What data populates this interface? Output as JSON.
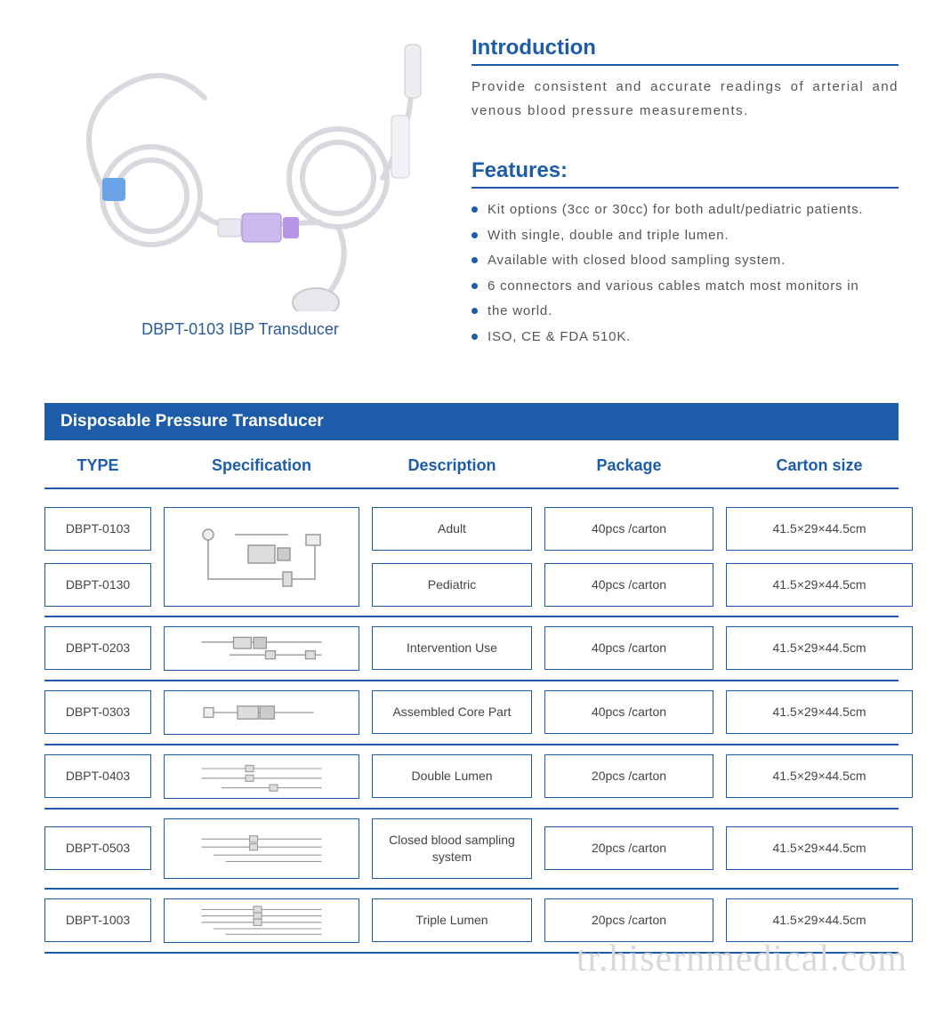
{
  "colors": {
    "brand": "#1d5ca8",
    "text": "#555558",
    "caption": "#2a5a9a",
    "watermark": "#d9d9d9",
    "white": "#ffffff"
  },
  "product": {
    "caption": "DBPT-0103 IBP Transducer"
  },
  "introduction": {
    "heading": "Introduction",
    "text": "Provide consistent and accurate readings of arterial and venous blood pressure measurements."
  },
  "features": {
    "heading": "Features:",
    "items": [
      "Kit options (3cc or 30cc) for both adult/pediatric patients.",
      "With single, double and triple lumen.",
      "Available with closed blood sampling system.",
      "6 connectors and various cables match most monitors in",
      "the world.",
      "ISO, CE & FDA 510K."
    ]
  },
  "table": {
    "title": "Disposable Pressure Transducer",
    "columns": [
      "TYPE",
      "Specification",
      "Description",
      "Package",
      "Carton  size"
    ],
    "merged_group": {
      "types": [
        "DBPT-0103",
        "DBPT-0130"
      ],
      "rows": [
        {
          "description": "Adult",
          "package": "40pcs /carton",
          "carton": "41.5×29×44.5cm"
        },
        {
          "description": "Pediatric",
          "package": "40pcs /carton",
          "carton": "41.5×29×44.5cm"
        }
      ]
    },
    "rows": [
      {
        "type": "DBPT-0203",
        "description": "Intervention Use",
        "package": "40pcs /carton",
        "carton": "41.5×29×44.5cm"
      },
      {
        "type": "DBPT-0303",
        "description": "Assembled Core Part",
        "package": "40pcs /carton",
        "carton": "41.5×29×44.5cm"
      },
      {
        "type": "DBPT-0403",
        "description": "Double Lumen",
        "package": "20pcs /carton",
        "carton": "41.5×29×44.5cm"
      },
      {
        "type": "DBPT-0503",
        "description": "Closed blood sampling system",
        "package": "20pcs /carton",
        "carton": "41.5×29×44.5cm"
      },
      {
        "type": "DBPT-1003",
        "description": "Triple Lumen",
        "package": "20pcs /carton",
        "carton": "41.5×29×44.5cm"
      }
    ]
  },
  "watermark": "tr.hisernmedical.com"
}
